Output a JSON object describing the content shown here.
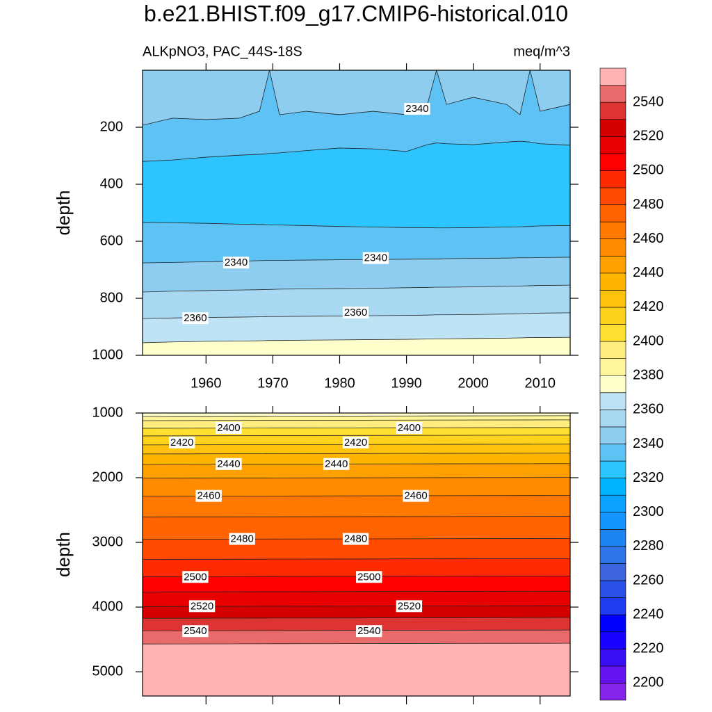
{
  "title": "b.e21.BHIST.f09_g17.CMIP6-historical.010",
  "subtitle_left": "ALKpNO3, PAC_44S-18S",
  "subtitle_right": "meq/m^3",
  "colorbar": {
    "levels": [
      2200,
      2210,
      2220,
      2230,
      2240,
      2250,
      2260,
      2270,
      2280,
      2290,
      2300,
      2310,
      2320,
      2330,
      2340,
      2350,
      2360,
      2370,
      2380,
      2390,
      2400,
      2410,
      2420,
      2430,
      2440,
      2450,
      2460,
      2470,
      2480,
      2490,
      2500,
      2510,
      2520,
      2530,
      2540,
      2550
    ],
    "colors": [
      "#8424e8",
      "#6414f0",
      "#3a0ff5",
      "#1a00ff",
      "#0000ff",
      "#1f3cf0",
      "#2850e6",
      "#3c64dc",
      "#2e74e6",
      "#1e84f0",
      "#1494ff",
      "#0aa4ff",
      "#00b4ff",
      "#2ec4ff",
      "#5ec2f4",
      "#8ecdf0",
      "#a8d8f2",
      "#bde3f5",
      "#ffffcc",
      "#fff59a",
      "#ffed80",
      "#ffe030",
      "#ffd21e",
      "#ffc20f",
      "#ffb400",
      "#ffa000",
      "#ff8c00",
      "#ff7800",
      "#ff6400",
      "#ff4a00",
      "#ff2a00",
      "#ff0000",
      "#e80000",
      "#d40000",
      "#dd3333",
      "#e86a6a",
      "#ffb3b3"
    ],
    "ticks": [
      2200,
      2220,
      2240,
      2260,
      2280,
      2300,
      2320,
      2340,
      2360,
      2380,
      2400,
      2420,
      2440,
      2460,
      2480,
      2500,
      2520,
      2540
    ]
  },
  "chart_data": [
    {
      "type": "contour",
      "ylabel": "depth",
      "xlim": [
        1950.5,
        2014.5
      ],
      "ylim": [
        0,
        1000
      ],
      "xticks": [
        1960,
        1970,
        1980,
        1990,
        2000,
        2010
      ],
      "xtick_labels": true,
      "yticks": [
        200,
        400,
        600,
        800,
        1000
      ],
      "x": [
        1950.5,
        1955,
        1960,
        1965,
        1968,
        1969.5,
        1971,
        1975,
        1980,
        1985,
        1990,
        1993,
        1994.5,
        1996,
        2000,
        2005,
        2007,
        2008.5,
        2010,
        2014.5
      ],
      "lines": [
        {
          "level": 2340,
          "values": [
            193,
            168,
            173,
            168,
            144,
            0,
            156,
            144,
            156,
            144,
            156,
            132,
            0,
            120,
            95,
            120,
            156,
            0,
            144,
            120
          ]
        },
        {
          "level": 2330,
          "values": [
            320,
            315,
            305,
            298,
            295,
            292,
            290,
            282,
            273,
            276,
            285,
            262,
            255,
            258,
            261,
            252,
            249,
            252,
            258,
            263
          ]
        },
        {
          "level": 2330,
          "values": [
            534,
            535,
            537,
            540,
            541,
            542,
            543,
            545,
            548,
            550,
            552,
            552,
            553,
            553,
            552,
            550,
            549,
            548,
            546,
            545
          ]
        },
        {
          "level": 2340,
          "values": [
            676,
            674,
            672,
            670,
            668,
            667,
            667,
            666,
            665,
            664,
            663,
            662,
            662,
            661,
            660,
            659,
            658,
            658,
            657,
            656
          ]
        },
        {
          "level": 2350,
          "values": [
            778,
            775,
            773,
            771,
            770,
            769,
            768,
            767,
            766,
            765,
            763,
            762,
            761,
            761,
            760,
            758,
            757,
            756,
            755,
            754
          ]
        },
        {
          "level": 2360,
          "values": [
            871,
            869,
            867,
            866,
            865,
            864,
            864,
            863,
            862,
            861,
            860,
            859,
            858,
            858,
            857,
            855,
            854,
            853,
            852,
            851
          ]
        },
        {
          "level": 2370,
          "values": [
            956,
            953,
            951,
            950,
            949,
            948,
            948,
            947,
            946,
            945,
            944,
            943,
            942,
            942,
            941,
            940,
            939,
            938,
            938,
            937
          ]
        }
      ],
      "band_levels": [
        2340,
        2330,
        2320,
        2330,
        2340,
        2350,
        2360,
        2370
      ],
      "labels": [
        {
          "value": 2340,
          "x": 1991.6,
          "y": 137
        },
        {
          "value": 2340,
          "x": 1964.5,
          "y": 676
        },
        {
          "value": 2340,
          "x": 1985.4,
          "y": 660
        },
        {
          "value": 2360,
          "x": 1958.4,
          "y": 871
        },
        {
          "value": 2360,
          "x": 1982.4,
          "y": 851
        }
      ]
    },
    {
      "type": "contour",
      "ylabel": "depth",
      "xlim": [
        1950.5,
        2014.5
      ],
      "ylim": [
        1000,
        5375
      ],
      "xticks": [
        1960,
        1970,
        1980,
        1990,
        2000,
        2010
      ],
      "xtick_labels": false,
      "yticks": [
        1000,
        2000,
        3000,
        4000,
        5000
      ],
      "x": [
        1950.5,
        1970,
        1990,
        2014.5
      ],
      "lines": [
        {
          "level": 2380,
          "values": [
            1054,
            1050,
            1046,
            1042
          ]
        },
        {
          "level": 2390,
          "values": [
            1118,
            1114,
            1110,
            1106
          ]
        },
        {
          "level": 2400,
          "values": [
            1236,
            1232,
            1228,
            1224
          ]
        },
        {
          "level": 2410,
          "values": [
            1354,
            1350,
            1346,
            1342
          ]
        },
        {
          "level": 2420,
          "values": [
            1493,
            1489,
            1485,
            1481
          ]
        },
        {
          "level": 2430,
          "values": [
            1633,
            1629,
            1625,
            1621
          ]
        },
        {
          "level": 2440,
          "values": [
            1794,
            1790,
            1786,
            1782
          ]
        },
        {
          "level": 2450,
          "values": [
            2008,
            2004,
            2000,
            1996
          ]
        },
        {
          "level": 2460,
          "values": [
            2287,
            2283,
            2279,
            2275
          ]
        },
        {
          "level": 2470,
          "values": [
            2609,
            2605,
            2601,
            2597
          ]
        },
        {
          "level": 2480,
          "values": [
            2952,
            2948,
            2944,
            2940
          ]
        },
        {
          "level": 2490,
          "values": [
            3263,
            3259,
            3255,
            3251
          ]
        },
        {
          "level": 2500,
          "values": [
            3531,
            3527,
            3523,
            3519
          ]
        },
        {
          "level": 2510,
          "values": [
            3767,
            3763,
            3759,
            3755
          ]
        },
        {
          "level": 2520,
          "values": [
            3992,
            3988,
            3984,
            3980
          ]
        },
        {
          "level": 2530,
          "values": [
            4174,
            4170,
            4166,
            4162
          ]
        },
        {
          "level": 2540,
          "values": [
            4367,
            4363,
            4359,
            4355
          ]
        },
        {
          "level": 2550,
          "values": [
            4571,
            4567,
            4563,
            4559
          ]
        }
      ],
      "band_levels": [
        2370,
        2380,
        2390,
        2400,
        2410,
        2420,
        2430,
        2440,
        2450,
        2460,
        2470,
        2480,
        2490,
        2500,
        2510,
        2520,
        2530,
        2540,
        2550
      ],
      "labels": [
        {
          "value": 2400,
          "x": 1963.4,
          "y": 1236
        },
        {
          "value": 2400,
          "x": 1990.4,
          "y": 1236
        },
        {
          "value": 2420,
          "x": 1956.4,
          "y": 1461
        },
        {
          "value": 2420,
          "x": 1982.4,
          "y": 1461
        },
        {
          "value": 2440,
          "x": 1963.4,
          "y": 1794
        },
        {
          "value": 2440,
          "x": 1979.5,
          "y": 1794
        },
        {
          "value": 2460,
          "x": 1960.4,
          "y": 2287
        },
        {
          "value": 2460,
          "x": 1991.4,
          "y": 2287
        },
        {
          "value": 2480,
          "x": 1965.4,
          "y": 2952
        },
        {
          "value": 2480,
          "x": 1982.4,
          "y": 2952
        },
        {
          "value": 2500,
          "x": 1958.4,
          "y": 3540
        },
        {
          "value": 2500,
          "x": 1984.4,
          "y": 3540
        },
        {
          "value": 2520,
          "x": 1959.4,
          "y": 3992
        },
        {
          "value": 2520,
          "x": 1990.4,
          "y": 3992
        },
        {
          "value": 2540,
          "x": 1958.4,
          "y": 4378
        },
        {
          "value": 2540,
          "x": 1984.4,
          "y": 4378
        }
      ]
    }
  ]
}
